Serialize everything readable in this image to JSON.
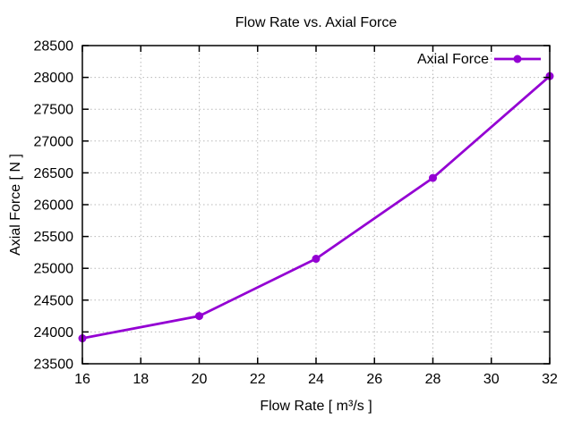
{
  "chart_data": {
    "type": "line",
    "title": "Flow Rate vs. Axial Force",
    "xlabel": "Flow Rate [ m³/s ]",
    "ylabel": "Axial Force [ N ]",
    "x": [
      16,
      20,
      24,
      28,
      32
    ],
    "series": [
      {
        "name": "Axial Force",
        "values": [
          23900,
          24250,
          25150,
          26420,
          28020
        ],
        "color": "#9400d3",
        "marker": "circle"
      }
    ],
    "xlim": [
      16,
      32
    ],
    "ylim": [
      23500,
      28500
    ],
    "x_ticks": [
      16,
      18,
      20,
      22,
      24,
      26,
      28,
      30,
      32
    ],
    "y_ticks": [
      23500,
      24000,
      24500,
      25000,
      25500,
      26000,
      26500,
      27000,
      27500,
      28000,
      28500
    ],
    "grid": true,
    "grid_color": "#b8b8b8",
    "axis_color": "#000000",
    "legend_position": "top-right-inside"
  }
}
